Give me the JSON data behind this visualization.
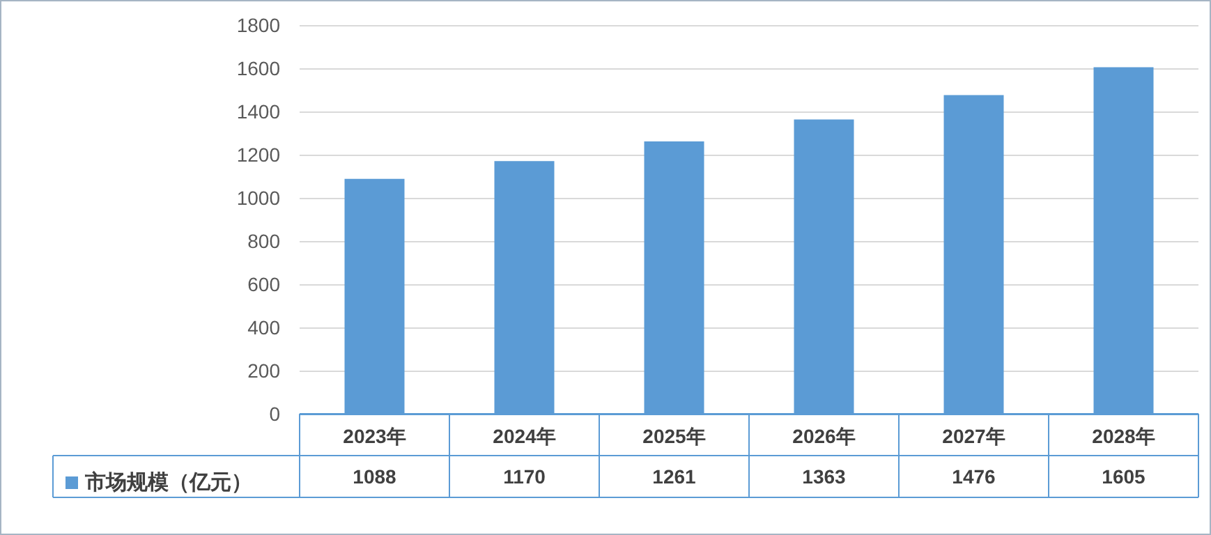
{
  "chart_data": {
    "type": "bar",
    "categories": [
      "2023年",
      "2024年",
      "2025年",
      "2026年",
      "2027年",
      "2028年"
    ],
    "series": [
      {
        "name": "市场规模（亿元）",
        "color": "#5b9bd5",
        "values": [
          1088,
          1170,
          1261,
          1363,
          1476,
          1605
        ]
      }
    ],
    "ylim": [
      0,
      1800
    ],
    "yticks": [
      0,
      200,
      400,
      600,
      800,
      1000,
      1200,
      1400,
      1600,
      1800
    ],
    "grid": "y",
    "legend": "bottom",
    "data_labels": true
  }
}
